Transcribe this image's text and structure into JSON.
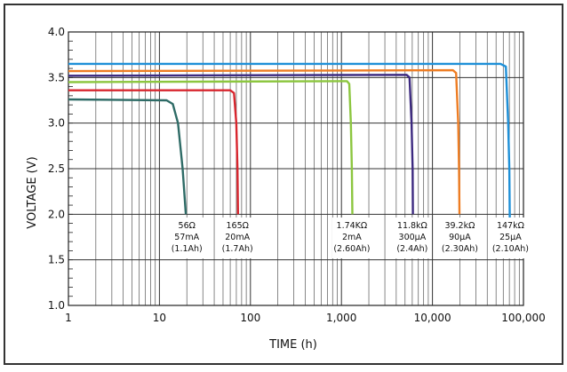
{
  "chart_data": {
    "type": "line",
    "xlabel": "TIME (h)",
    "ylabel": "VOLTAGE (V)",
    "x_scale": "log",
    "xlim": [
      1,
      100000
    ],
    "ylim": [
      1.0,
      4.0
    ],
    "grid": true,
    "x_ticks": [
      {
        "value": 1,
        "label": "1"
      },
      {
        "value": 10,
        "label": "10"
      },
      {
        "value": 100,
        "label": "100"
      },
      {
        "value": 1000,
        "label": "1,000"
      },
      {
        "value": 10000,
        "label": "10,000"
      },
      {
        "value": 100000,
        "label": "100,000"
      }
    ],
    "y_ticks": [
      {
        "value": 1.0,
        "label": "1.0"
      },
      {
        "value": 1.5,
        "label": "1.5"
      },
      {
        "value": 2.0,
        "label": "2.0"
      },
      {
        "value": 2.5,
        "label": "2.5"
      },
      {
        "value": 3.0,
        "label": "3.0"
      },
      {
        "value": 3.5,
        "label": "3.5"
      },
      {
        "value": 4.0,
        "label": "4.0"
      }
    ],
    "series": [
      {
        "color": "#2e6b66",
        "values": [
          [
            1,
            3.26
          ],
          [
            12,
            3.25
          ],
          [
            14,
            3.21
          ],
          [
            16,
            3.0
          ],
          [
            18,
            2.5
          ],
          [
            19.5,
            2.0
          ]
        ]
      },
      {
        "color": "#d8262e",
        "values": [
          [
            1,
            3.36
          ],
          [
            60,
            3.36
          ],
          [
            66,
            3.33
          ],
          [
            70,
            3.0
          ],
          [
            72,
            2.5
          ],
          [
            73,
            2.0
          ]
        ]
      },
      {
        "color": "#8cc63f",
        "values": [
          [
            1,
            3.45
          ],
          [
            1150,
            3.46
          ],
          [
            1220,
            3.43
          ],
          [
            1270,
            3.0
          ],
          [
            1300,
            2.5
          ],
          [
            1320,
            2.0
          ]
        ]
      },
      {
        "color": "#3d2a80",
        "values": [
          [
            1,
            3.52
          ],
          [
            5200,
            3.53
          ],
          [
            5600,
            3.5
          ],
          [
            5900,
            3.0
          ],
          [
            6050,
            2.5
          ],
          [
            6100,
            2.0
          ]
        ]
      },
      {
        "color": "#ee7d23",
        "values": [
          [
            1,
            3.57
          ],
          [
            16800,
            3.58
          ],
          [
            18200,
            3.55
          ],
          [
            19200,
            3.0
          ],
          [
            19600,
            2.5
          ],
          [
            19800,
            2.0
          ]
        ]
      },
      {
        "color": "#1e90d8",
        "values": [
          [
            1,
            3.65
          ],
          [
            56000,
            3.65
          ],
          [
            64000,
            3.62
          ],
          [
            68000,
            3.0
          ],
          [
            70000,
            2.5
          ],
          [
            71000,
            1.75
          ]
        ]
      }
    ],
    "annotations": [
      {
        "lines": [
          "56Ω",
          "57mA",
          "(1.1Ah)"
        ],
        "x": 20
      },
      {
        "lines": [
          "165Ω",
          "20mA",
          "(1.7Ah)"
        ],
        "x": 72
      },
      {
        "lines": [
          "1.74KΩ",
          "2mA",
          "(2.60Ah)"
        ],
        "x": 1300
      },
      {
        "lines": [
          "11.8kΩ",
          "300µA",
          "(2.4Ah)"
        ],
        "x": 6000
      },
      {
        "lines": [
          "39.2kΩ",
          "90µA",
          "(2.30Ah)"
        ],
        "x": 20000
      },
      {
        "lines": [
          "147kΩ",
          "25µA",
          "(2.10Ah)"
        ],
        "x": 72000
      }
    ]
  }
}
